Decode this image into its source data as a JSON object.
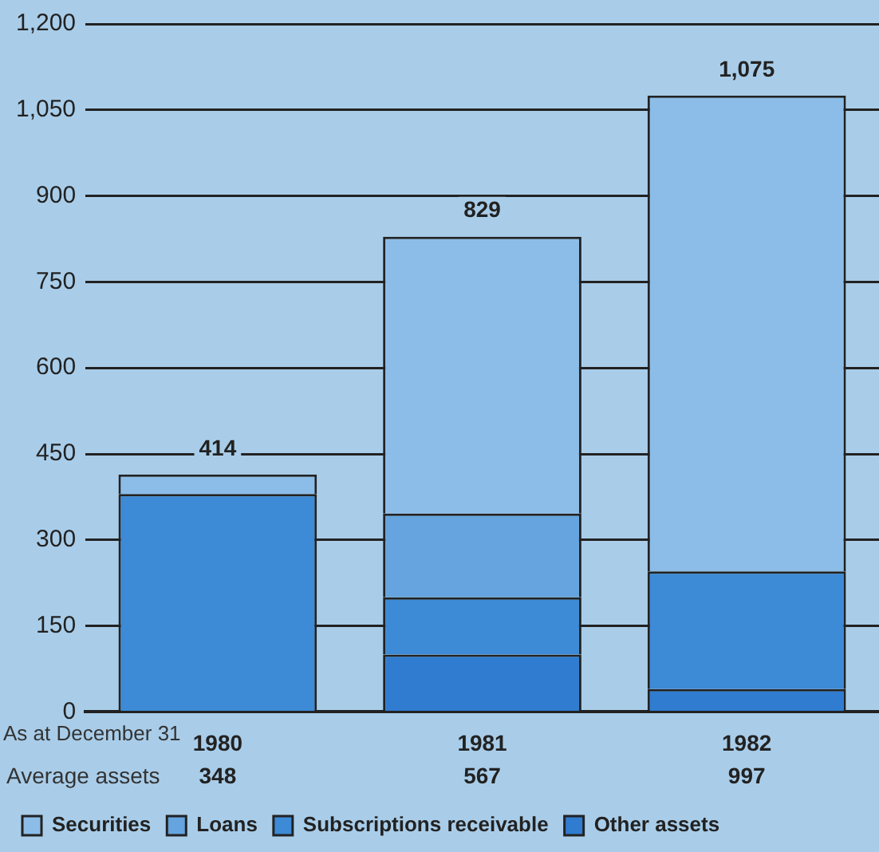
{
  "chart_data": {
    "type": "bar",
    "stacked": true,
    "xlabel": "As at December 31",
    "categories": [
      "1980",
      "1981",
      "1982"
    ],
    "series": [
      {
        "name": "Other assets",
        "color": "#2f7cd0",
        "values": [
          null,
          100,
          40
        ]
      },
      {
        "name": "Subscriptions receivable",
        "color": "#3d8ad6",
        "values": [
          380,
          100,
          205
        ]
      },
      {
        "name": "Loans",
        "color": "#65a4de",
        "values": [
          null,
          146,
          null
        ]
      },
      {
        "name": "Securities",
        "color": "#8cbde8",
        "values": [
          34,
          483,
          830
        ]
      }
    ],
    "totals": [
      "414",
      "829",
      "1,075"
    ],
    "annotations": [
      "Average assets",
      "348",
      "567",
      "997"
    ],
    "ylim": [
      0,
      1200
    ],
    "yticks": [
      0,
      150,
      300,
      450,
      600,
      750,
      900,
      {
        "value": 1050,
        "label": "1,050"
      },
      {
        "value": 1200,
        "label": "1,200"
      }
    ],
    "grid": "y",
    "legend": "bottom"
  }
}
